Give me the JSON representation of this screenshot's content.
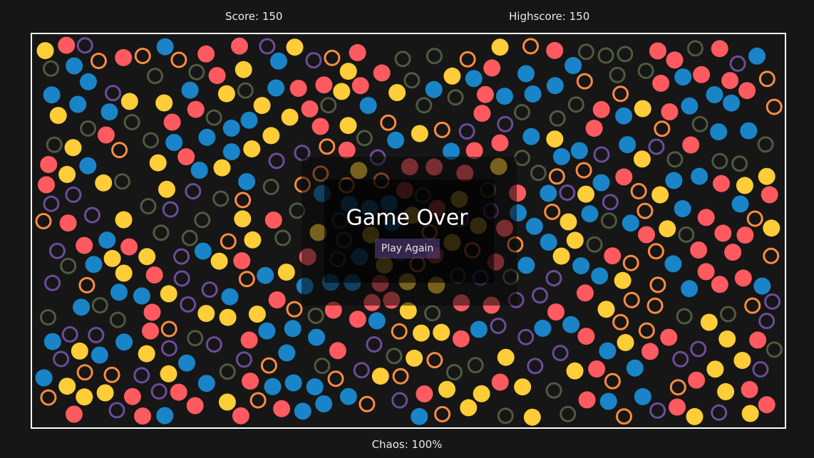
{
  "hud": {
    "score": "Score: 150",
    "highscore": "Highscore: 150",
    "chaos": "Chaos: 100%"
  },
  "overlay": {
    "title": "Game Over",
    "button": "Play Again"
  },
  "palette": {
    "background": "#161616",
    "filled": [
      "#1a84c8",
      "#ffcd38",
      "#ff5a5f"
    ],
    "rings": [
      "#ff8c42",
      "#6b4c9a",
      "#4f5a3f"
    ]
  }
}
